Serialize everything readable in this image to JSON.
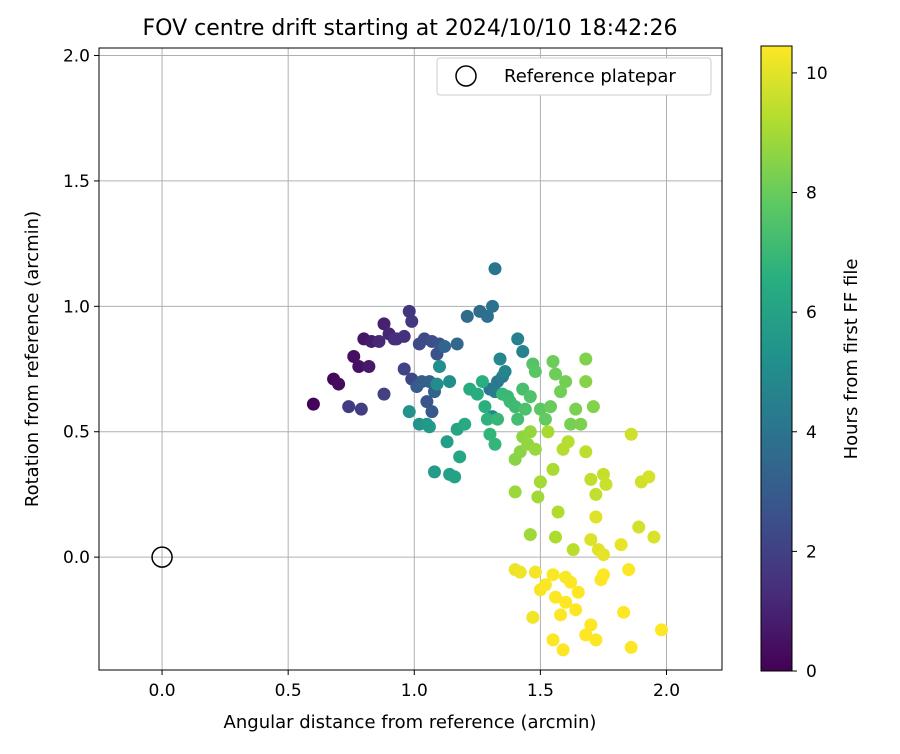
{
  "chart_data": {
    "type": "scatter",
    "title": "FOV centre drift starting at 2024/10/10 18:42:26",
    "xlabel": "Angular distance from reference (arcmin)",
    "ylabel": "Rotation from reference (arcmin)",
    "xlim": [
      -0.25,
      2.22
    ],
    "ylim": [
      -0.45,
      2.03
    ],
    "xticks": [
      0.0,
      0.5,
      1.0,
      1.5,
      2.0
    ],
    "yticks": [
      0.0,
      0.5,
      1.0,
      1.5,
      2.0
    ],
    "xtick_labels": [
      "0.0",
      "0.5",
      "1.0",
      "1.5",
      "2.0"
    ],
    "ytick_labels": [
      "0.0",
      "0.5",
      "1.0",
      "1.5",
      "2.0"
    ],
    "grid": true,
    "legend": {
      "placement": "top-right",
      "entries": [
        "Reference platepar"
      ]
    },
    "reference_point": {
      "name": "Reference platepar",
      "x": 0.0,
      "y": 0.0
    },
    "colorbar": {
      "label": "Hours from first FF file",
      "colormap": "viridis",
      "range": [
        0,
        10.45
      ],
      "ticks": [
        0,
        2,
        4,
        6,
        8,
        10
      ],
      "tick_labels": [
        "0",
        "2",
        "4",
        "6",
        "8",
        "10"
      ]
    },
    "points": [
      [
        0.6,
        0.61,
        0.1
      ],
      [
        0.68,
        0.71,
        0.2
      ],
      [
        0.7,
        0.69,
        0.3
      ],
      [
        0.76,
        0.8,
        0.4
      ],
      [
        0.78,
        0.76,
        0.5
      ],
      [
        0.8,
        0.87,
        0.6
      ],
      [
        0.82,
        0.76,
        0.7
      ],
      [
        0.83,
        0.86,
        0.8
      ],
      [
        0.88,
        0.93,
        0.95
      ],
      [
        0.9,
        0.89,
        1.1
      ],
      [
        0.86,
        0.86,
        1.2
      ],
      [
        0.92,
        0.87,
        1.3
      ],
      [
        0.93,
        0.87,
        1.4
      ],
      [
        0.96,
        0.88,
        1.5
      ],
      [
        0.98,
        0.98,
        1.6
      ],
      [
        0.99,
        0.94,
        1.7
      ],
      [
        0.74,
        0.6,
        1.8
      ],
      [
        0.79,
        0.59,
        1.9
      ],
      [
        0.88,
        0.65,
        2.0
      ],
      [
        0.96,
        0.75,
        2.1
      ],
      [
        0.99,
        0.71,
        2.2
      ],
      [
        1.02,
        0.85,
        2.3
      ],
      [
        1.04,
        0.87,
        2.4
      ],
      [
        1.07,
        0.86,
        2.5
      ],
      [
        1.1,
        0.85,
        2.6
      ],
      [
        1.09,
        0.81,
        2.7
      ],
      [
        1.05,
        0.62,
        2.8
      ],
      [
        1.07,
        0.58,
        2.9
      ],
      [
        1.01,
        0.68,
        3.0
      ],
      [
        1.03,
        0.7,
        3.1
      ],
      [
        1.06,
        0.7,
        3.2
      ],
      [
        1.08,
        0.66,
        3.3
      ],
      [
        1.12,
        0.84,
        3.4
      ],
      [
        1.17,
        0.85,
        3.5
      ],
      [
        1.21,
        0.96,
        3.6
      ],
      [
        1.26,
        0.98,
        3.7
      ],
      [
        1.29,
        0.96,
        3.8
      ],
      [
        1.31,
        1.0,
        3.9
      ],
      [
        1.32,
        1.15,
        4.0
      ],
      [
        1.3,
        0.67,
        4.1
      ],
      [
        1.33,
        0.7,
        4.2
      ],
      [
        1.35,
        0.72,
        4.3
      ],
      [
        1.32,
        0.66,
        4.4
      ],
      [
        1.41,
        0.87,
        4.5
      ],
      [
        1.43,
        0.82,
        4.6
      ],
      [
        1.36,
        0.74,
        4.7
      ],
      [
        1.34,
        0.79,
        4.8
      ],
      [
        1.31,
        0.56,
        4.9
      ],
      [
        1.09,
        0.69,
        5.0
      ],
      [
        1.14,
        0.7,
        5.1
      ],
      [
        1.1,
        0.76,
        5.2
      ],
      [
        0.98,
        0.58,
        5.3
      ],
      [
        1.02,
        0.53,
        5.4
      ],
      [
        1.05,
        0.53,
        5.5
      ],
      [
        1.06,
        0.52,
        5.6
      ],
      [
        1.08,
        0.34,
        5.7
      ],
      [
        1.13,
        0.46,
        5.8
      ],
      [
        1.14,
        0.33,
        5.9
      ],
      [
        1.16,
        0.32,
        6.0
      ],
      [
        1.17,
        0.51,
        6.1
      ],
      [
        1.18,
        0.4,
        6.2
      ],
      [
        1.2,
        0.53,
        6.3
      ],
      [
        1.22,
        0.67,
        6.4
      ],
      [
        1.25,
        0.65,
        6.5
      ],
      [
        1.27,
        0.7,
        6.55
      ],
      [
        1.28,
        0.6,
        6.6
      ],
      [
        1.29,
        0.55,
        6.7
      ],
      [
        1.3,
        0.49,
        6.8
      ],
      [
        1.32,
        0.45,
        6.85
      ],
      [
        1.33,
        0.55,
        6.9
      ],
      [
        1.35,
        0.65,
        6.95
      ],
      [
        1.37,
        0.64,
        7.0
      ],
      [
        1.38,
        0.62,
        7.05
      ],
      [
        1.4,
        0.6,
        7.1
      ],
      [
        1.41,
        0.55,
        7.2
      ],
      [
        1.43,
        0.67,
        7.3
      ],
      [
        1.44,
        0.59,
        7.4
      ],
      [
        1.46,
        0.64,
        7.5
      ],
      [
        1.47,
        0.77,
        7.6
      ],
      [
        1.48,
        0.74,
        7.7
      ],
      [
        1.5,
        0.59,
        7.8
      ],
      [
        1.52,
        0.55,
        7.9
      ],
      [
        1.54,
        0.6,
        8.0
      ],
      [
        1.55,
        0.78,
        8.05
      ],
      [
        1.56,
        0.73,
        8.1
      ],
      [
        1.58,
        0.66,
        8.15
      ],
      [
        1.6,
        0.7,
        8.2
      ],
      [
        1.62,
        0.53,
        8.25
      ],
      [
        1.64,
        0.59,
        8.3
      ],
      [
        1.66,
        0.53,
        8.35
      ],
      [
        1.68,
        0.79,
        8.4
      ],
      [
        1.71,
        0.6,
        8.45
      ],
      [
        1.68,
        0.7,
        8.5
      ],
      [
        1.4,
        0.39,
        8.55
      ],
      [
        1.42,
        0.42,
        8.6
      ],
      [
        1.43,
        0.48,
        8.65
      ],
      [
        1.45,
        0.45,
        8.7
      ],
      [
        1.46,
        0.5,
        8.75
      ],
      [
        1.48,
        0.43,
        8.8
      ],
      [
        1.4,
        0.26,
        8.85
      ],
      [
        1.46,
        0.09,
        8.9
      ],
      [
        1.49,
        0.24,
        8.95
      ],
      [
        1.5,
        0.3,
        9.0
      ],
      [
        1.53,
        0.5,
        9.05
      ],
      [
        1.55,
        0.35,
        9.1
      ],
      [
        1.56,
        0.08,
        9.15
      ],
      [
        1.57,
        0.18,
        9.2
      ],
      [
        1.59,
        0.43,
        9.25
      ],
      [
        1.61,
        0.46,
        9.3
      ],
      [
        1.63,
        0.03,
        9.35
      ],
      [
        1.68,
        0.42,
        9.4
      ],
      [
        1.7,
        0.31,
        9.45
      ],
      [
        1.72,
        0.25,
        9.5
      ],
      [
        1.75,
        0.33,
        9.55
      ],
      [
        1.76,
        0.29,
        9.6
      ],
      [
        1.86,
        0.49,
        9.65
      ],
      [
        1.9,
        0.3,
        9.7
      ],
      [
        1.89,
        0.12,
        9.75
      ],
      [
        1.93,
        0.32,
        9.8
      ],
      [
        1.95,
        0.08,
        9.85
      ],
      [
        1.7,
        0.07,
        9.9
      ],
      [
        1.72,
        0.16,
        9.95
      ],
      [
        1.73,
        0.03,
        10.0
      ],
      [
        1.75,
        0.01,
        10.05
      ],
      [
        1.82,
        0.05,
        10.1
      ],
      [
        1.4,
        -0.05,
        10.15
      ],
      [
        1.42,
        -0.06,
        10.2
      ],
      [
        1.47,
        -0.24,
        10.25
      ],
      [
        1.48,
        -0.06,
        10.3
      ],
      [
        1.5,
        -0.13,
        10.35
      ],
      [
        1.52,
        -0.11,
        10.4
      ],
      [
        1.55,
        -0.07,
        10.4
      ],
      [
        1.56,
        -0.16,
        10.45
      ],
      [
        1.58,
        -0.23,
        10.45
      ],
      [
        1.6,
        -0.18,
        10.45
      ],
      [
        1.62,
        -0.1,
        10.45
      ],
      [
        1.64,
        -0.21,
        10.45
      ],
      [
        1.65,
        -0.14,
        10.45
      ],
      [
        1.55,
        -0.33,
        10.45
      ],
      [
        1.59,
        -0.37,
        10.45
      ],
      [
        1.68,
        -0.31,
        10.45
      ],
      [
        1.7,
        -0.27,
        10.45
      ],
      [
        1.72,
        -0.33,
        10.45
      ],
      [
        1.74,
        -0.09,
        10.45
      ],
      [
        1.75,
        -0.07,
        10.45
      ],
      [
        1.83,
        -0.22,
        10.45
      ],
      [
        1.85,
        -0.05,
        10.45
      ],
      [
        1.86,
        -0.36,
        10.45
      ],
      [
        1.98,
        -0.29,
        10.45
      ],
      [
        1.6,
        -0.08,
        10.4
      ]
    ]
  }
}
